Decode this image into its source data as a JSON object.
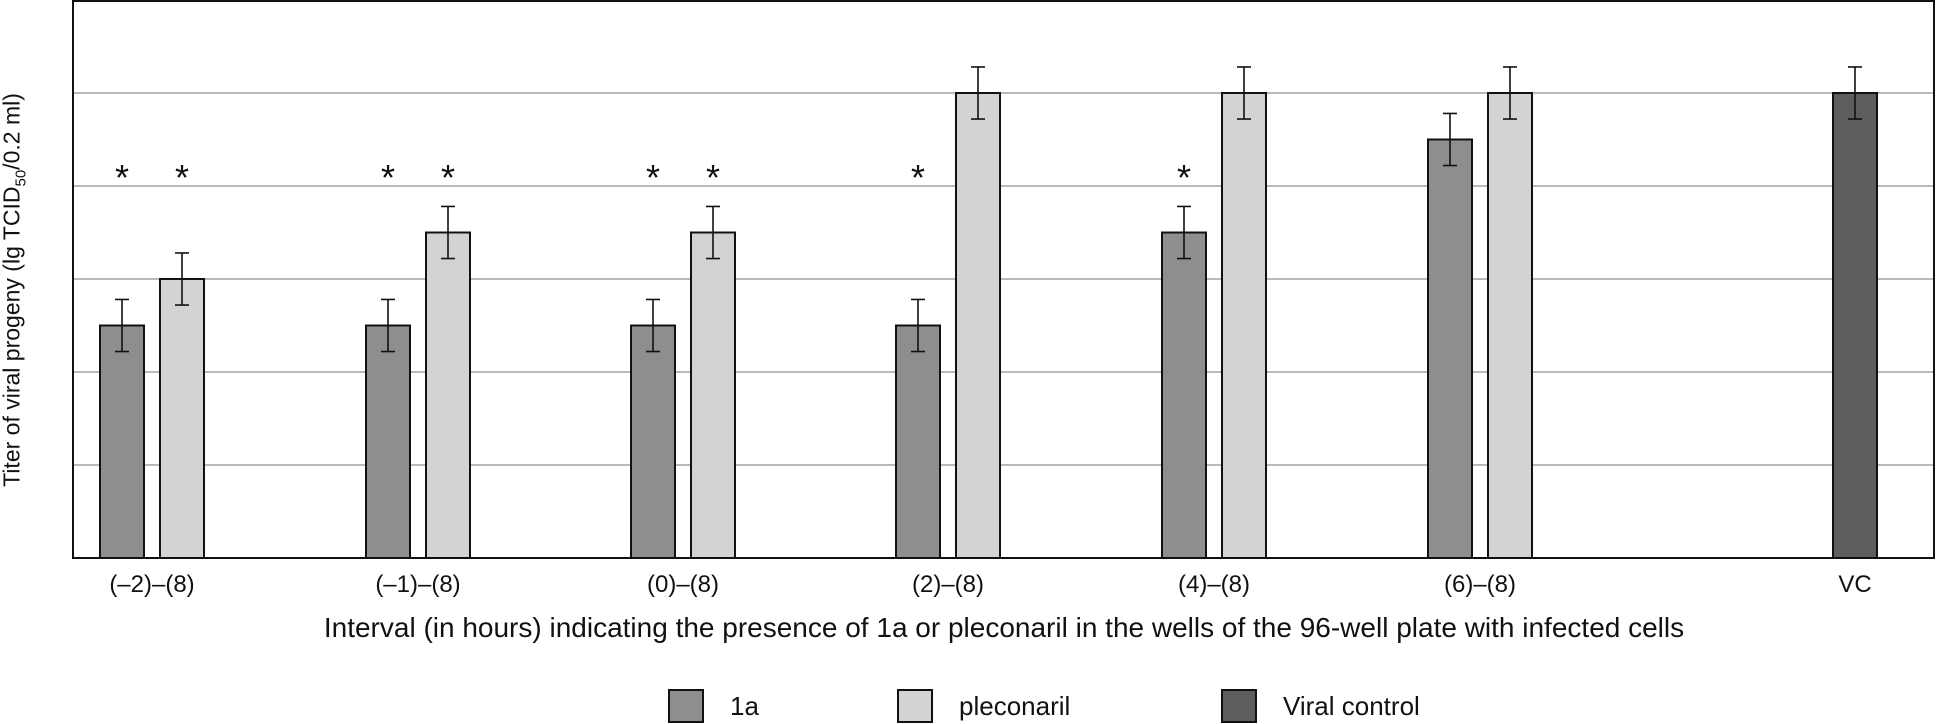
{
  "chart_data": {
    "type": "bar",
    "title": "",
    "ylabel": {
      "main": "Titer of viral progeny (lg TCID",
      "sub": "50",
      "end": "/0.2 ml)"
    },
    "xlabel": "Interval (in hours) indicating the presence of 1a or pleconaril in the wells of the 96-well plate with infected cells",
    "categories": [
      "(–2)–(8)",
      "(–1)–(8)",
      "(0)–(8)",
      "(2)–(8)",
      "(4)–(8)",
      "(6)–(8)",
      "VC"
    ],
    "ylim": [
      0,
      6
    ],
    "grid": true,
    "series": [
      {
        "name": "1a",
        "color": "#8e8e91",
        "values": [
          2.5,
          2.5,
          2.5,
          2.5,
          3.5,
          4.5,
          null
        ],
        "errors": [
          0.28,
          0.28,
          0.28,
          0.28,
          0.28,
          0.28,
          null
        ]
      },
      {
        "name": "pleconaril",
        "color": "#d3d3d5",
        "values": [
          3.0,
          3.5,
          3.5,
          5.0,
          5.0,
          5.0,
          null
        ],
        "errors": [
          0.28,
          0.28,
          0.28,
          0.28,
          0.28,
          0.28,
          null
        ]
      },
      {
        "name": "Viral control",
        "color": "#5d5d60",
        "values": [
          null,
          null,
          null,
          null,
          null,
          null,
          5.0
        ],
        "errors": [
          null,
          null,
          null,
          null,
          null,
          null,
          0.28
        ]
      }
    ],
    "significance": [
      {
        "category": 0,
        "series": 0,
        "label": "*"
      },
      {
        "category": 0,
        "series": 1,
        "label": "*"
      },
      {
        "category": 1,
        "series": 0,
        "label": "*"
      },
      {
        "category": 1,
        "series": 1,
        "label": "*"
      },
      {
        "category": 2,
        "series": 0,
        "label": "*"
      },
      {
        "category": 2,
        "series": 1,
        "label": "*"
      },
      {
        "category": 3,
        "series": 0,
        "label": "*"
      },
      {
        "category": 4,
        "series": 0,
        "label": "*"
      }
    ],
    "legend": {
      "position": "bottom"
    }
  }
}
